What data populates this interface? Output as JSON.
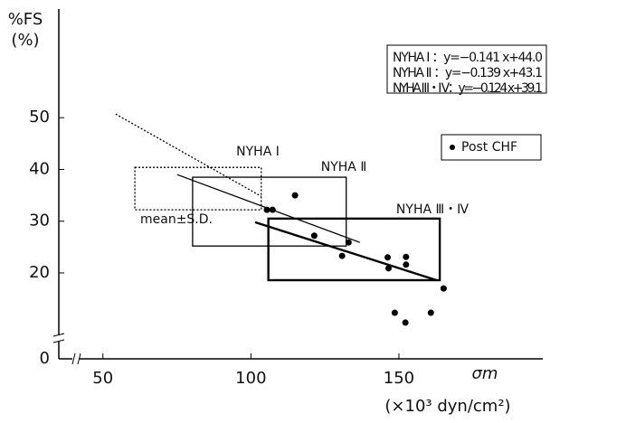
{
  "chart_data": {
    "type": "scatter",
    "y_label": "%FS",
    "y_unit": "(%)",
    "x_label": "σm",
    "x_unit": "(×10³ dyn/cm²)",
    "xlim": [
      35.1,
      198.6
    ],
    "ylim": [
      3.4,
      71
    ],
    "xticks": [
      50,
      100,
      150
    ],
    "yticks": [
      0,
      20,
      30,
      40,
      50
    ],
    "series": [
      {
        "name": "Post CHF",
        "color": "#000000",
        "x": [
          105.4,
          107.3,
          114.9,
          121.4,
          133.0,
          130.8,
          146.2,
          146.5,
          152.4,
          152.4,
          165.1,
          148.6,
          152.2,
          160.8
        ],
        "y": [
          32.2,
          32.2,
          35.0,
          27.2,
          25.9,
          23.3,
          23.0,
          20.9,
          23.1,
          21.6,
          17.0,
          12.3,
          10.4,
          12.3
        ]
      }
    ],
    "boxes": [
      {
        "name": "NYHA Ⅰ",
        "x": [
          60.8,
          103.5
        ],
        "y": [
          32.2,
          40.4
        ],
        "style": "dotted"
      },
      {
        "name": "NYHA Ⅱ",
        "x": [
          80.3,
          132.2
        ],
        "y": [
          25.2,
          38.5
        ],
        "style": "thin"
      },
      {
        "name": "NYHA Ⅲ・Ⅳ",
        "x": [
          105.9,
          163.8
        ],
        "y": [
          18.6,
          30.5
        ],
        "style": "thick"
      }
    ],
    "regression_lines": [
      {
        "x": [
          54.3,
          103.5
        ],
        "y": [
          50.7,
          34.8
        ],
        "style": "dotted"
      },
      {
        "x": [
          75.1,
          136.8
        ],
        "y": [
          39.0,
          25.9
        ],
        "style": "thin"
      },
      {
        "x": [
          101.4,
          162.7
        ],
        "y": [
          29.8,
          18.6
        ],
        "style": "thick"
      }
    ],
    "box_note": "mean±S.D.",
    "equations": [
      "NYHA Ⅰ ：y=−0.141 x+44.0",
      "NYHA Ⅱ ：y=−0.139 x+43.1",
      "NYHA Ⅲ・Ⅳ：y=−0.124 x+39.1"
    ]
  }
}
